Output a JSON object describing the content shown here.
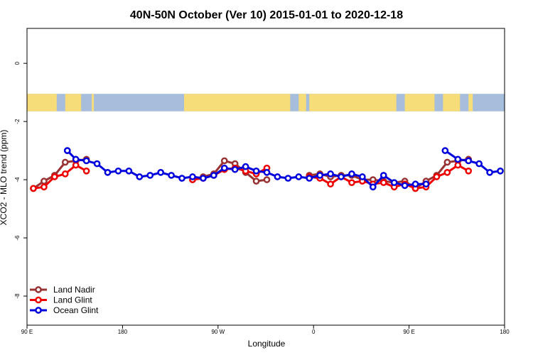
{
  "chart_data": {
    "type": "line",
    "title": "40N-50N October (Ver 10)   2015-01-01 to 2020-12-18",
    "xlabel": "Longitude",
    "ylabel": "XCO2 - MLO trend (ppm)",
    "xlim": [
      90,
      540
    ],
    "ylim": [
      -9,
      1.2
    ],
    "x_ticks": [
      {
        "value": 90,
        "label": "90 E"
      },
      {
        "value": 180,
        "label": "180"
      },
      {
        "value": 270,
        "label": "90 W"
      },
      {
        "value": 360,
        "label": "0"
      },
      {
        "value": 450,
        "label": "90 E"
      },
      {
        "value": 540,
        "label": "180"
      }
    ],
    "y_ticks": [
      {
        "value": 0,
        "label": "0"
      },
      {
        "value": -2,
        "label": "-2"
      },
      {
        "value": -4,
        "label": "-4"
      },
      {
        "value": -6,
        "label": "-6"
      },
      {
        "value": -8,
        "label": "-8"
      }
    ],
    "map_strip": {
      "y_top": -1.05,
      "y_bottom": -1.65,
      "ocean_color": "#a6bddb",
      "land_color": "#f7dc7a"
    },
    "legend_position": "bottom-left",
    "series": [
      {
        "name": "Land Nadir",
        "color": "#993333",
        "segments": [
          [
            [
              96,
              -4.3
            ],
            [
              106,
              -4.05
            ],
            [
              116,
              -3.85
            ],
            [
              126,
              -3.4
            ],
            [
              136,
              -3.35
            ],
            [
              146,
              -3.3
            ]
          ],
          [
            [
              246,
              -4.0
            ],
            [
              256,
              -3.9
            ],
            [
              266,
              -3.8
            ],
            [
              276,
              -3.35
            ],
            [
              286,
              -3.45
            ],
            [
              296,
              -3.75
            ],
            [
              306,
              -4.05
            ],
            [
              316,
              -4.0
            ]
          ],
          [
            [
              356,
              -3.85
            ],
            [
              366,
              -3.8
            ],
            [
              376,
              -3.9
            ],
            [
              386,
              -3.85
            ],
            [
              396,
              -3.85
            ],
            [
              406,
              -4.0
            ],
            [
              416,
              -4.0
            ],
            [
              426,
              -4.05
            ],
            [
              436,
              -4.1
            ],
            [
              446,
              -4.05
            ],
            [
              456,
              -4.3
            ],
            [
              466,
              -4.05
            ],
            [
              476,
              -3.85
            ],
            [
              486,
              -3.4
            ],
            [
              496,
              -3.35
            ],
            [
              506,
              -3.3
            ]
          ]
        ]
      },
      {
        "name": "Land Glint",
        "color": "#ee0000",
        "segments": [
          [
            [
              96,
              -4.3
            ],
            [
              106,
              -4.25
            ],
            [
              116,
              -3.9
            ],
            [
              126,
              -3.8
            ],
            [
              136,
              -3.5
            ],
            [
              146,
              -3.7
            ]
          ],
          [
            [
              246,
              -4.0
            ],
            [
              256,
              -3.95
            ],
            [
              266,
              -3.85
            ],
            [
              276,
              -3.65
            ],
            [
              286,
              -3.6
            ],
            [
              296,
              -3.7
            ],
            [
              306,
              -3.8
            ],
            [
              316,
              -3.6
            ]
          ],
          [
            [
              356,
              -3.9
            ],
            [
              366,
              -3.95
            ],
            [
              376,
              -4.15
            ],
            [
              386,
              -3.9
            ],
            [
              396,
              -4.1
            ],
            [
              406,
              -4.05
            ],
            [
              416,
              -4.15
            ],
            [
              426,
              -4.1
            ],
            [
              436,
              -4.25
            ],
            [
              446,
              -4.15
            ],
            [
              456,
              -4.3
            ],
            [
              466,
              -4.25
            ],
            [
              476,
              -3.9
            ],
            [
              486,
              -3.75
            ],
            [
              496,
              -3.5
            ],
            [
              506,
              -3.7
            ]
          ]
        ]
      },
      {
        "name": "Ocean Glint",
        "color": "#0000dd",
        "segments": [
          [
            [
              128,
              -3.0
            ],
            [
              128,
              -3.0
            ],
            [
              136,
              -3.3
            ],
            [
              146,
              -3.35
            ],
            [
              156,
              -3.45
            ],
            [
              166,
              -3.75
            ],
            [
              176,
              -3.7
            ],
            [
              186,
              -3.7
            ],
            [
              196,
              -3.9
            ],
            [
              206,
              -3.85
            ],
            [
              216,
              -3.75
            ],
            [
              226,
              -3.85
            ],
            [
              236,
              -3.95
            ],
            [
              246,
              -3.9
            ],
            [
              256,
              -3.95
            ],
            [
              266,
              -3.85
            ],
            [
              276,
              -3.6
            ],
            [
              286,
              -3.65
            ],
            [
              296,
              -3.55
            ],
            [
              306,
              -3.7
            ],
            [
              316,
              -3.75
            ],
            [
              326,
              -3.9
            ],
            [
              336,
              -3.95
            ],
            [
              346,
              -3.9
            ],
            [
              356,
              -3.95
            ],
            [
              366,
              -3.85
            ],
            [
              376,
              -3.8
            ],
            [
              386,
              -3.9
            ],
            [
              396,
              -3.8
            ],
            [
              406,
              -3.9
            ],
            [
              416,
              -4.25
            ],
            [
              426,
              -3.85
            ],
            [
              436,
              -4.1
            ],
            [
              446,
              -4.2
            ],
            [
              456,
              -4.15
            ],
            [
              466,
              -4.15
            ]
          ],
          [
            [
              484,
              -3.0
            ],
            [
              496,
              -3.3
            ],
            [
              506,
              -3.35
            ],
            [
              516,
              -3.45
            ],
            [
              526,
              -3.75
            ],
            [
              536,
              -3.7
            ]
          ]
        ]
      }
    ]
  }
}
